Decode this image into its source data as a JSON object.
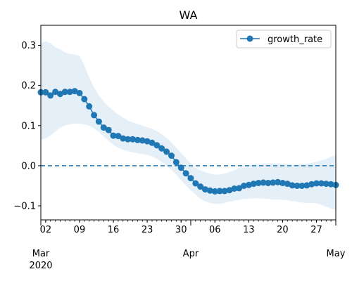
{
  "chart_data": {
    "type": "line",
    "title": "WA",
    "xlabel": "",
    "ylabel": "",
    "ylim": [
      -0.135,
      0.35
    ],
    "xlim": [
      "2020-03-01",
      "2020-05-01"
    ],
    "legend": {
      "placement": "top-right",
      "entries": [
        "growth_rate"
      ]
    },
    "grid": false,
    "colors": {
      "series": "#1f77b4",
      "band": "#dce9f6",
      "zero_line": "#1f77b4"
    },
    "yticks": [
      {
        "value": 0.3,
        "label": "0.3"
      },
      {
        "value": 0.2,
        "label": "0.2"
      },
      {
        "value": 0.1,
        "label": "0.1"
      },
      {
        "value": 0.0,
        "label": "0.0"
      },
      {
        "value": -0.1,
        "label": "−0.1"
      }
    ],
    "xticks_major": [
      {
        "date": "2020-03-02",
        "label": "02"
      },
      {
        "date": "2020-03-09",
        "label": "09"
      },
      {
        "date": "2020-03-16",
        "label": "16"
      },
      {
        "date": "2020-03-23",
        "label": "23"
      },
      {
        "date": "2020-03-30",
        "label": "30"
      },
      {
        "date": "2020-04-06",
        "label": "06"
      },
      {
        "date": "2020-04-13",
        "label": "13"
      },
      {
        "date": "2020-04-20",
        "label": "20"
      },
      {
        "date": "2020-04-27",
        "label": "27"
      }
    ],
    "month_labels": [
      {
        "date": "2020-03-01",
        "label": "Mar",
        "year": "2020"
      },
      {
        "date": "2020-04-01",
        "label": "Apr",
        "year": ""
      },
      {
        "date": "2020-05-01",
        "label": "May",
        "year": ""
      }
    ],
    "reference_line": {
      "y": 0.0,
      "style": "dashed"
    },
    "series": [
      {
        "name": "growth_rate",
        "start_date": "2020-03-01",
        "values": [
          0.183,
          0.183,
          0.175,
          0.184,
          0.179,
          0.184,
          0.184,
          0.186,
          0.181,
          0.166,
          0.148,
          0.126,
          0.11,
          0.095,
          0.089,
          0.075,
          0.074,
          0.068,
          0.066,
          0.066,
          0.064,
          0.063,
          0.061,
          0.057,
          0.051,
          0.043,
          0.035,
          0.025,
          0.009,
          -0.005,
          -0.019,
          -0.031,
          -0.044,
          -0.052,
          -0.059,
          -0.062,
          -0.064,
          -0.063,
          -0.063,
          -0.061,
          -0.057,
          -0.056,
          -0.05,
          -0.048,
          -0.045,
          -0.043,
          -0.042,
          -0.043,
          -0.042,
          -0.041,
          -0.043,
          -0.045,
          -0.049,
          -0.05,
          -0.05,
          -0.049,
          -0.046,
          -0.044,
          -0.044,
          -0.045,
          -0.046,
          -0.048
        ],
        "lower": [
          0.065,
          0.068,
          0.075,
          0.085,
          0.095,
          0.1,
          0.103,
          0.105,
          0.105,
          0.103,
          0.1,
          0.093,
          0.084,
          0.073,
          0.062,
          0.052,
          0.045,
          0.04,
          0.036,
          0.033,
          0.031,
          0.029,
          0.027,
          0.023,
          0.017,
          0.009,
          0.0,
          -0.01,
          -0.022,
          -0.036,
          -0.049,
          -0.061,
          -0.072,
          -0.082,
          -0.089,
          -0.093,
          -0.095,
          -0.095,
          -0.093,
          -0.09,
          -0.087,
          -0.085,
          -0.083,
          -0.082,
          -0.081,
          -0.081,
          -0.082,
          -0.083,
          -0.084,
          -0.084,
          -0.085,
          -0.086,
          -0.088,
          -0.09,
          -0.092,
          -0.093,
          -0.093,
          -0.094,
          -0.097,
          -0.102,
          -0.107,
          -0.11
        ],
        "upper": [
          0.305,
          0.31,
          0.305,
          0.295,
          0.29,
          0.282,
          0.279,
          0.277,
          0.274,
          0.25,
          0.22,
          0.195,
          0.175,
          0.16,
          0.147,
          0.137,
          0.128,
          0.12,
          0.113,
          0.108,
          0.104,
          0.1,
          0.096,
          0.092,
          0.086,
          0.078,
          0.069,
          0.058,
          0.045,
          0.032,
          0.018,
          0.006,
          -0.004,
          -0.011,
          -0.016,
          -0.02,
          -0.022,
          -0.022,
          -0.02,
          -0.016,
          -0.011,
          -0.006,
          -0.002,
          0.001,
          0.003,
          0.004,
          0.005,
          0.006,
          0.006,
          0.006,
          0.005,
          0.004,
          0.003,
          0.003,
          0.004,
          0.005,
          0.007,
          0.01,
          0.013,
          0.017,
          0.022,
          0.027
        ]
      }
    ]
  }
}
